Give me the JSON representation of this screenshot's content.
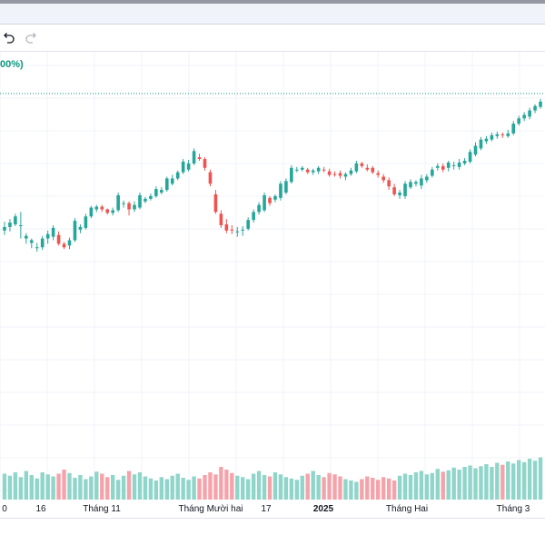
{
  "toolbar": {
    "undo_icon": "undo-icon",
    "redo_icon": "redo-icon"
  },
  "header": {
    "percent_label": "00%)"
  },
  "colors": {
    "up": "#26a69a",
    "down": "#ef5350",
    "up_volume": "#8fd5c9",
    "down_volume": "#f5a3ab",
    "grid": "#f0f3fa",
    "baseline": "#089981"
  },
  "chart_data": {
    "type": "candlestick",
    "grid": true,
    "x_ticks": [
      {
        "label": "0",
        "bold": false
      },
      {
        "label": "16",
        "bold": false
      },
      {
        "label": "Tháng 11",
        "bold": false
      },
      {
        "label": "Tháng Mười hai",
        "bold": false
      },
      {
        "label": "17",
        "bold": false
      },
      {
        "label": "2025",
        "bold": true
      },
      {
        "label": "Tháng Hai",
        "bold": false
      },
      {
        "label": "Tháng 3",
        "bold": false
      }
    ],
    "candles": [
      [
        179,
        183,
        174,
        189
      ],
      [
        183,
        188,
        178,
        192
      ],
      [
        186,
        195,
        184,
        198
      ],
      [
        184,
        185,
        170,
        200
      ],
      [
        170,
        173,
        164,
        176
      ],
      [
        165,
        168,
        159,
        170
      ],
      [
        159,
        160,
        155,
        165
      ],
      [
        160,
        170,
        157,
        173
      ],
      [
        170,
        175,
        164,
        179
      ],
      [
        172,
        182,
        168,
        185
      ],
      [
        174,
        164,
        162,
        178
      ],
      [
        164,
        160,
        158,
        166
      ],
      [
        162,
        168,
        158,
        171
      ],
      [
        168,
        190,
        166,
        193
      ],
      [
        180,
        183,
        176,
        186
      ],
      [
        182,
        195,
        180,
        198
      ],
      [
        195,
        205,
        193,
        207
      ],
      [
        203,
        206,
        200,
        208
      ],
      [
        206,
        203,
        200,
        208
      ],
      [
        203,
        199,
        197,
        204
      ],
      [
        199,
        202,
        196,
        205
      ],
      [
        202,
        219,
        200,
        222
      ],
      [
        210,
        210,
        205,
        213
      ],
      [
        210,
        203,
        196,
        212
      ],
      [
        203,
        208,
        200,
        212
      ],
      [
        205,
        219,
        203,
        222
      ],
      [
        212,
        215,
        210,
        217
      ],
      [
        215,
        218,
        213,
        221
      ],
      [
        218,
        226,
        216,
        229
      ],
      [
        222,
        225,
        220,
        228
      ],
      [
        225,
        238,
        223,
        240
      ],
      [
        232,
        238,
        230,
        242
      ],
      [
        238,
        245,
        236,
        247
      ],
      [
        245,
        257,
        243,
        260
      ],
      [
        248,
        255,
        246,
        259
      ],
      [
        255,
        269,
        253,
        272
      ],
      [
        262,
        260,
        258,
        266
      ],
      [
        260,
        250,
        247,
        262
      ],
      [
        245,
        232,
        229,
        248
      ],
      [
        220,
        200,
        198,
        225
      ],
      [
        198,
        185,
        182,
        202
      ],
      [
        186,
        179,
        176,
        192
      ],
      [
        180,
        179,
        175,
        185
      ],
      [
        178,
        178,
        172,
        183
      ],
      [
        180,
        180,
        173,
        184
      ],
      [
        181,
        191,
        179,
        194
      ],
      [
        191,
        200,
        188,
        203
      ],
      [
        200,
        208,
        197,
        211
      ],
      [
        202,
        219,
        200,
        222
      ],
      [
        216,
        210,
        207,
        218
      ],
      [
        214,
        218,
        211,
        220
      ],
      [
        216,
        232,
        213,
        235
      ],
      [
        222,
        235,
        220,
        238
      ],
      [
        234,
        250,
        232,
        253
      ],
      [
        248,
        248,
        245,
        251
      ],
      [
        248,
        250,
        246,
        252
      ],
      [
        248,
        245,
        243,
        250
      ],
      [
        245,
        247,
        242,
        249
      ],
      [
        246,
        250,
        243,
        252
      ],
      [
        248,
        247,
        245,
        251
      ],
      [
        246,
        242,
        240,
        249
      ],
      [
        243,
        242,
        240,
        246
      ],
      [
        244,
        241,
        238,
        247
      ],
      [
        240,
        243,
        236,
        245
      ],
      [
        243,
        247,
        241,
        250
      ],
      [
        246,
        255,
        244,
        258
      ],
      [
        255,
        252,
        250,
        257
      ],
      [
        250,
        248,
        246,
        254
      ],
      [
        250,
        245,
        243,
        252
      ],
      [
        244,
        242,
        239,
        247
      ],
      [
        240,
        236,
        233,
        243
      ],
      [
        236,
        229,
        225,
        239
      ],
      [
        228,
        220,
        218,
        232
      ],
      [
        219,
        222,
        215,
        225
      ],
      [
        218,
        232,
        215,
        235
      ],
      [
        228,
        234,
        226,
        237
      ],
      [
        232,
        234,
        229,
        236
      ],
      [
        230,
        238,
        226,
        242
      ],
      [
        236,
        240,
        233,
        243
      ],
      [
        241,
        248,
        239,
        251
      ],
      [
        250,
        252,
        247,
        255
      ],
      [
        252,
        248,
        245,
        255
      ],
      [
        250,
        256,
        246,
        258
      ],
      [
        253,
        253,
        248,
        257
      ],
      [
        251,
        256,
        248,
        260
      ],
      [
        255,
        258,
        253,
        261
      ],
      [
        257,
        268,
        255,
        271
      ],
      [
        265,
        275,
        263,
        279
      ],
      [
        272,
        282,
        270,
        285
      ],
      [
        280,
        283,
        277,
        286
      ],
      [
        282,
        287,
        280,
        290
      ],
      [
        286,
        288,
        283,
        291
      ],
      [
        288,
        287,
        284,
        290
      ],
      [
        286,
        289,
        284,
        293
      ],
      [
        289,
        300,
        287,
        303
      ],
      [
        300,
        306,
        298,
        309
      ],
      [
        306,
        310,
        303,
        313
      ],
      [
        308,
        315,
        305,
        318
      ],
      [
        315,
        320,
        312,
        322
      ],
      [
        319,
        325,
        317,
        328
      ]
    ],
    "volumes": [
      38,
      35,
      40,
      33,
      42,
      36,
      31,
      40,
      37,
      34,
      38,
      44,
      39,
      32,
      36,
      30,
      34,
      41,
      38,
      33,
      36,
      29,
      35,
      42,
      37,
      40,
      34,
      31,
      28,
      33,
      30,
      35,
      38,
      32,
      29,
      34,
      31,
      36,
      40,
      37,
      48,
      44,
      39,
      35,
      33,
      30,
      38,
      42,
      36,
      34,
      40,
      37,
      33,
      31,
      29,
      35,
      38,
      42,
      36,
      33,
      39,
      37,
      34,
      30,
      28,
      26,
      30,
      34,
      32,
      29,
      33,
      31,
      28,
      35,
      38,
      36,
      40,
      42,
      37,
      39,
      45,
      41,
      43,
      47,
      44,
      48,
      50,
      46,
      49,
      52,
      48,
      54,
      51,
      56,
      53,
      58,
      55,
      60,
      57,
      62
    ]
  }
}
